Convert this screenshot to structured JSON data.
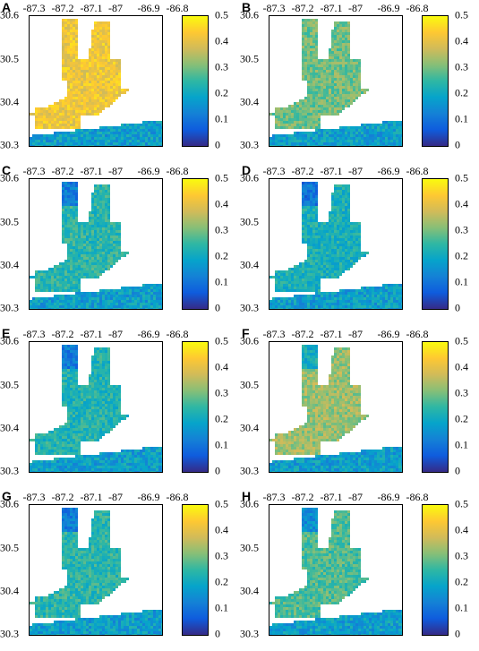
{
  "colors": {
    "cmap": [
      "#352a87",
      "#0f5cdd",
      "#1481d6",
      "#06a4ca",
      "#2eb7a4",
      "#87bf77",
      "#d1bb59",
      "#fec832",
      "#f9fb0e"
    ]
  },
  "axes": {
    "x_ticks": [
      "-87.3",
      "-87.2",
      "-87.1",
      "-87",
      "-86.9",
      "-86.8"
    ],
    "y_ticks": [
      "30.6",
      "30.5",
      "30.4",
      "30.3"
    ],
    "colorbar_ticks": [
      "0.5",
      "0.4",
      "0.3",
      "0.2",
      "0.1",
      "0"
    ]
  },
  "chart_data": [
    {
      "type": "heatmap",
      "panel": "A",
      "mean_level": 0.42
    },
    {
      "type": "heatmap",
      "panel": "B",
      "mean_level": 0.3
    },
    {
      "type": "heatmap",
      "panel": "C",
      "mean_level": 0.24
    },
    {
      "type": "heatmap",
      "panel": "D",
      "mean_level": 0.22
    },
    {
      "type": "heatmap",
      "panel": "E",
      "mean_level": 0.23
    },
    {
      "type": "heatmap",
      "panel": "F",
      "mean_level": 0.33
    },
    {
      "type": "heatmap",
      "panel": "G",
      "mean_level": 0.24
    },
    {
      "type": "heatmap",
      "panel": "H",
      "mean_level": 0.27
    }
  ]
}
